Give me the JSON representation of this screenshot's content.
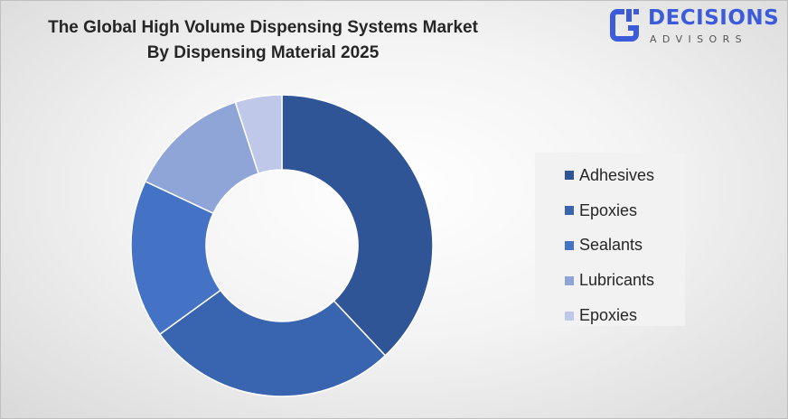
{
  "chart_data": {
    "type": "donut",
    "title": "The Global High Volume Dispensing Systems Market\nBy Dispensing Material 2025",
    "categories": [
      "Adhesives",
      "Epoxies",
      "Sealants",
      "Lubricants",
      "Epoxies"
    ],
    "values": [
      38,
      27,
      17,
      13,
      5
    ],
    "colors": [
      "#2f5597",
      "#3964b0",
      "#4472c4",
      "#8fa4d7",
      "#bfc8e8"
    ],
    "legend_position": "right"
  },
  "logo": {
    "line1": "DECISIONS",
    "line2": "ADVISORS",
    "color": "#3b5bdb"
  }
}
